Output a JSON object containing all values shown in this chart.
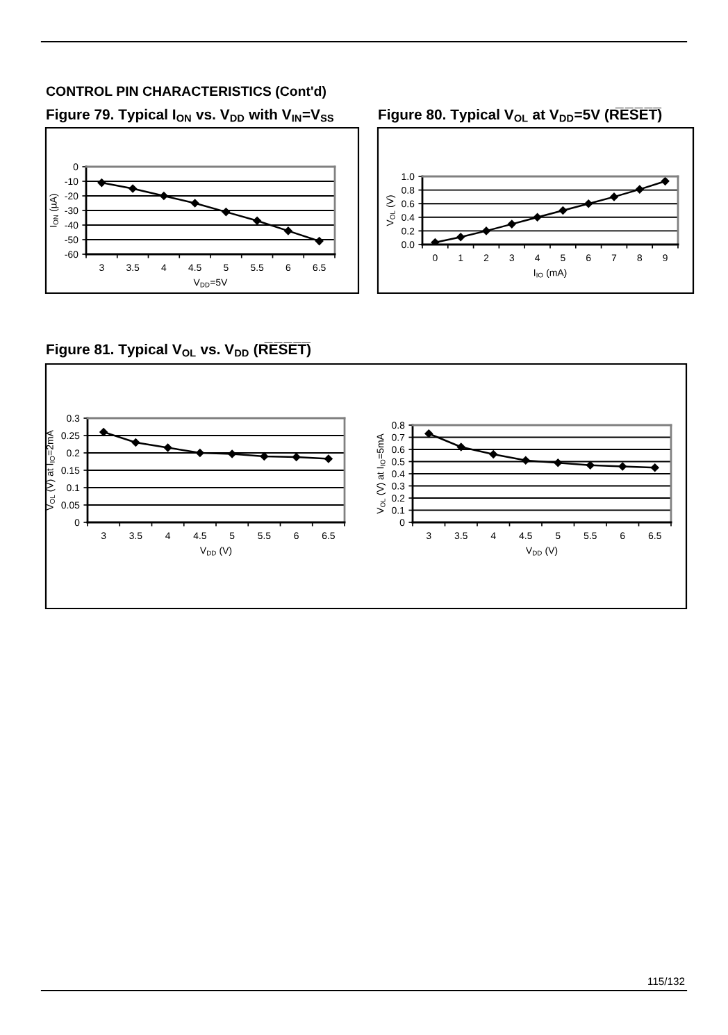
{
  "chart_data": [
    {
      "type": "line",
      "title": "Figure 79. Typical I$_{ON}$ vs. V$_{DD}$ with V$_{IN}$=V$_{SS}$",
      "ylabel": "I$_{ON}$ (µA)",
      "xlabel": "V$_{DD}$=5V",
      "categories": [
        "3",
        "3.5",
        "4",
        "4.5",
        "5",
        "5.5",
        "6",
        "6.5"
      ],
      "values": [
        -11,
        -15,
        -20,
        -25,
        -31,
        -37,
        -44,
        -51
      ],
      "color": "#000000",
      "ylim": [
        -60,
        0
      ],
      "yticks": [
        -60,
        -50,
        -40,
        -30,
        -20,
        -10,
        0
      ],
      "grid": "y",
      "marker": "diamond",
      "line_style": "solid",
      "annotations": [
        "CONTROL PIN CHARACTERISTICS (Cont'd)"
      ]
    },
    {
      "type": "line",
      "title": "Figure 80. Typical V$_{OL}$ at V$_{DD}$=5V (R̅E̅S̅E̅T̅)",
      "ylabel": "V$_{OL}$ (V)",
      "xlabel": "I$_{IO}$ (mA)",
      "categories": [
        "0",
        "1",
        "2",
        "3",
        "4",
        "5",
        "6",
        "7",
        "8",
        "9"
      ],
      "values": [
        0.03,
        0.11,
        0.2,
        0.3,
        0.4,
        0.5,
        0.6,
        0.7,
        0.81,
        0.93
      ],
      "color": "#000000",
      "ylim": [
        0,
        1
      ],
      "yticks": [
        {
          "value": 0,
          "label": "0.0"
        },
        0.2,
        0.4,
        0.6,
        0.8,
        {
          "value": 1,
          "label": "1.0"
        }
      ],
      "grid": "y",
      "marker": "diamond",
      "line_style": "solid"
    },
    {
      "type": "line",
      "title": "Figure 81. Typical V$_{OL}$ vs. V$_{DD}$ (R̅E̅S̅E̅T̅)",
      "ylabel": "V$_{OL}$ (V) at I$_{IO}$=2mA",
      "xlabel": "V$_{DD}$ (V)",
      "categories": [
        "3",
        "3.5",
        "4",
        "4.5",
        "5",
        "5.5",
        "6",
        "6.5"
      ],
      "values": [
        0.26,
        0.23,
        0.215,
        0.2,
        0.197,
        0.19,
        0.188,
        0.183
      ],
      "color": "#000000",
      "ylim": [
        0,
        0.3
      ],
      "yticks": [
        0,
        0.05,
        0.1,
        0.15,
        0.2,
        0.25,
        0.3
      ],
      "grid": "y",
      "marker": "diamond",
      "line_style": "solid"
    },
    {
      "type": "line",
      "ylabel": "V$_{OL}$ (V) at I$_{IO}$=5mA",
      "xlabel": "V$_{DD}$ (V)",
      "categories": [
        "3",
        "3.5",
        "4",
        "4.5",
        "5",
        "5.5",
        "6",
        "6.5"
      ],
      "values": [
        0.73,
        0.62,
        0.56,
        0.51,
        0.49,
        0.47,
        0.46,
        0.45
      ],
      "color": "#000000",
      "ylim": [
        0,
        0.8
      ],
      "yticks": [
        0,
        0.1,
        0.2,
        0.3,
        0.4,
        0.5,
        0.6,
        0.7,
        0.8
      ],
      "grid": "y",
      "marker": "diamond",
      "line_style": "solid",
      "annotations": [
        "115/132"
      ]
    }
  ]
}
